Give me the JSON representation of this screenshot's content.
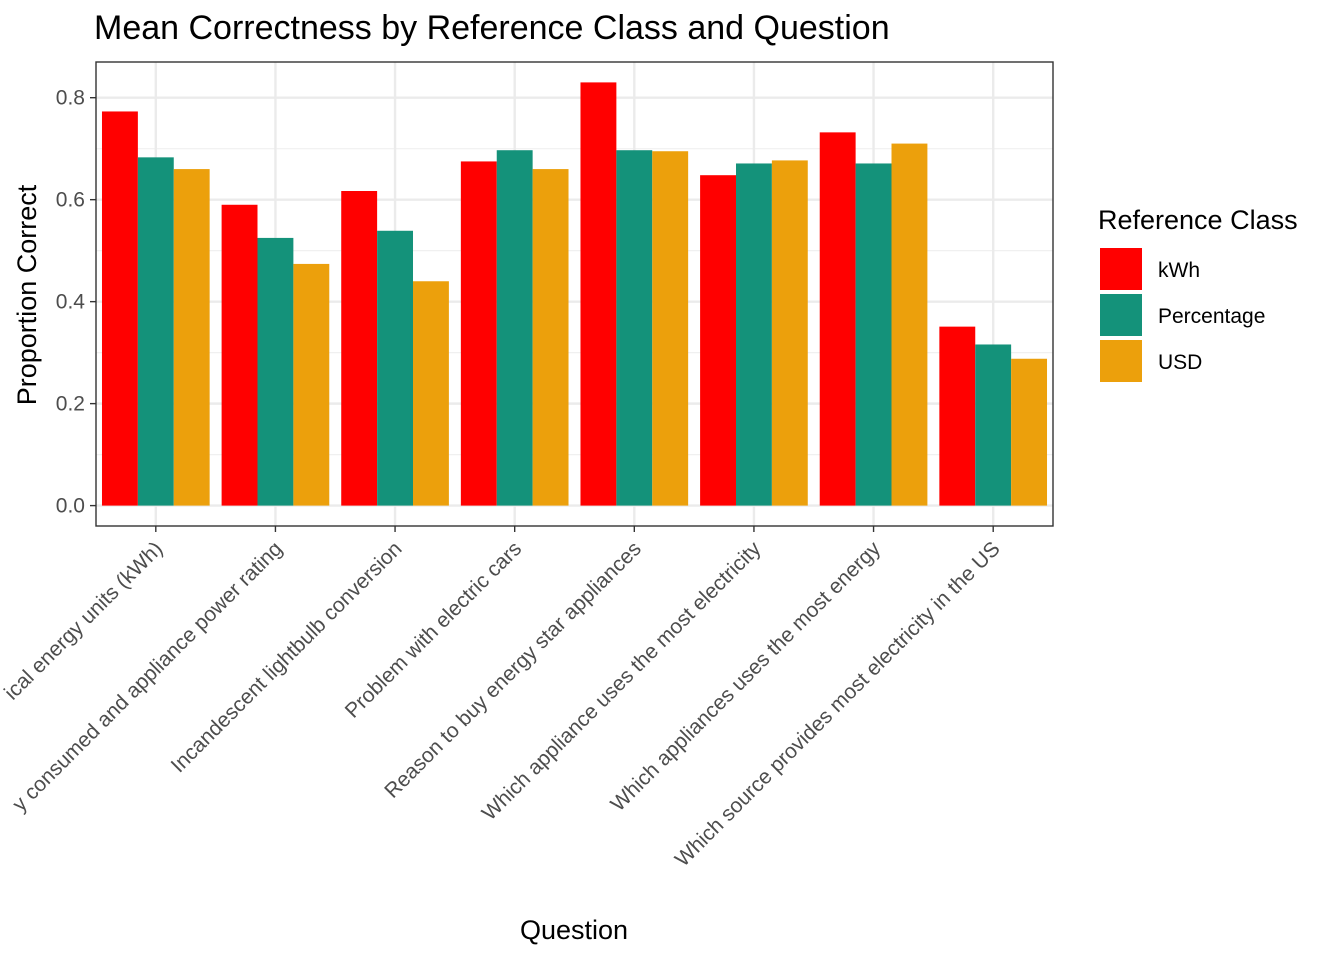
{
  "chart_data": {
    "type": "bar",
    "title": "Mean Correctness by Reference Class and Question",
    "xlabel": "Question",
    "ylabel": "Proportion Correct",
    "ylim": [
      -0.04,
      0.87
    ],
    "yticks": [
      0.0,
      0.2,
      0.4,
      0.6,
      0.8
    ],
    "ytick_labels": [
      "0.0",
      "0.2",
      "0.4",
      "0.6",
      "0.8"
    ],
    "grid": true,
    "legend_title": "Reference Class",
    "legend_position": "right",
    "categories": [
      "Electrical energy units (kWh)",
      "Energy consumed and appliance power rating",
      "Incandescent lightbulb conversion",
      "Problem with electric cars",
      "Reason to buy energy star appliances",
      "Which appliance uses the most electricity",
      "Which appliances uses the most energy",
      "Which source provides most electricity in the US"
    ],
    "category_labels_visible": [
      "ical energy units (kWh)",
      "y consumed and appliance power rating",
      "Incandescent lightbulb conversion",
      "Problem with electric cars",
      "Reason to buy energy star appliances",
      "Which appliance uses the most electricity",
      "Which appliances uses the most energy",
      "Which source provides most electricity in the US"
    ],
    "series": [
      {
        "name": "kWh",
        "color": "#ff0000",
        "values": [
          0.773,
          0.59,
          0.617,
          0.675,
          0.83,
          0.648,
          0.732,
          0.351
        ]
      },
      {
        "name": "Percentage",
        "color": "#14927a",
        "values": [
          0.683,
          0.525,
          0.539,
          0.697,
          0.697,
          0.671,
          0.671,
          0.316
        ]
      },
      {
        "name": "USD",
        "color": "#eca00c",
        "values": [
          0.66,
          0.474,
          0.44,
          0.66,
          0.695,
          0.677,
          0.71,
          0.288
        ]
      }
    ]
  }
}
